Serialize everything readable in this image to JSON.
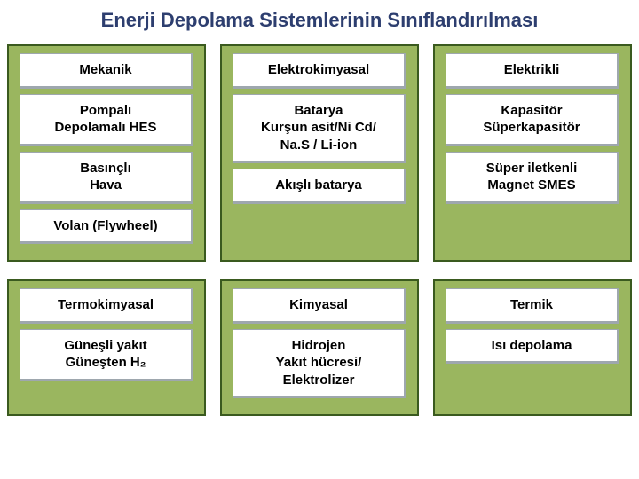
{
  "title": "Enerji Depolama Sistemlerinin Sınıflandırılması",
  "title_color": "#2d3e6f",
  "title_fontsize": 22,
  "panel_bg": "#9ab65f",
  "panel_border_color": "#3a5a1f",
  "panel_border_width": 2,
  "cell_bg": "#ffffff",
  "cell_border_color": "#9ea7ae",
  "cell_text_color": "#000000",
  "cell_fontsize": 15,
  "panels": {
    "r1c1": {
      "header": "Mekanik",
      "items": [
        "Pompalı\nDepolamalı HES",
        "Basınçlı\nHava",
        "Volan (Flywheel)"
      ]
    },
    "r1c2": {
      "header": "Elektrokimyasal",
      "items": [
        "Batarya\nKurşun asit/Ni Cd/\nNa.S / Li-ion",
        "Akışlı batarya"
      ]
    },
    "r1c3": {
      "header": "Elektrikli",
      "items": [
        "Kapasitör\nSüperkapasitör",
        "Süper iletkenli\nMagnet SMES"
      ]
    },
    "r2c1": {
      "header": "Termokimyasal",
      "items": [
        "Güneşli yakıt\nGüneşten H₂"
      ]
    },
    "r2c2": {
      "header": "Kimyasal",
      "items": [
        "Hidrojen\nYakıt hücresi/\nElektrolizer"
      ]
    },
    "r2c3": {
      "header": "Termik",
      "items": [
        "Isı depolama"
      ]
    }
  }
}
